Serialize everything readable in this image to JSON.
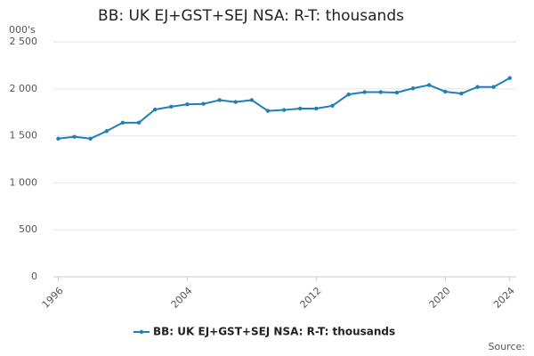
{
  "chart_data": {
    "type": "line",
    "title": "BB: UK EJ+GST+SEJ NSA: R-T: thousands",
    "y_label": "000's",
    "source": "Source:",
    "x": [
      1996,
      1997,
      1998,
      1999,
      2000,
      2001,
      2002,
      2003,
      2004,
      2005,
      2006,
      2007,
      2008,
      2009,
      2010,
      2011,
      2012,
      2013,
      2014,
      2015,
      2016,
      2017,
      2018,
      2019,
      2020,
      2021,
      2022,
      2023,
      2024
    ],
    "series": [
      {
        "name": "BB: UK EJ+GST+SEJ NSA: R-T: thousands",
        "color": "#1f7fb8",
        "values": [
          1470,
          1490,
          1470,
          1550,
          1640,
          1640,
          1780,
          1810,
          1835,
          1840,
          1880,
          1860,
          1880,
          1765,
          1775,
          1790,
          1790,
          1820,
          1940,
          1965,
          1965,
          1960,
          2005,
          2040,
          1970,
          1950,
          2020,
          2020,
          2115
        ]
      }
    ],
    "xlim": [
      1995.7,
      2024.4
    ],
    "xticks": [
      1996,
      2004,
      2012,
      2020,
      2024
    ],
    "ylim": [
      0,
      2500
    ],
    "yticks": [
      0,
      500,
      {
        "value": 1000,
        "label": "1 000"
      },
      {
        "value": 1500,
        "label": "1 500"
      },
      {
        "value": 2000,
        "label": "2 000"
      },
      {
        "value": 2500,
        "label": "2 500"
      }
    ],
    "grid": true,
    "legend": "bottom"
  }
}
